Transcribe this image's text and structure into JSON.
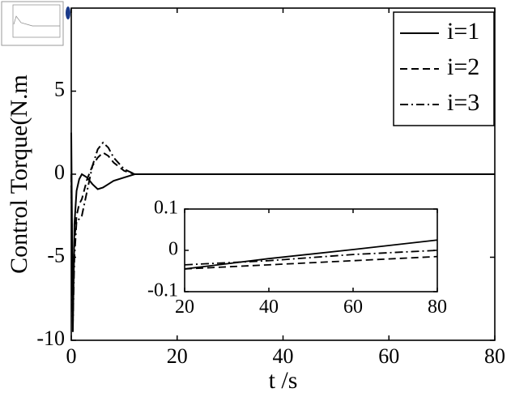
{
  "chart_data": [
    {
      "type": "line",
      "xlabel": "t /s",
      "ylabel": "Control Torque(N.m",
      "x": [
        0,
        0.3,
        0.6,
        1,
        1.5,
        2,
        3,
        4,
        5,
        6,
        7,
        8,
        10,
        12,
        15,
        80
      ],
      "series": [
        {
          "name": "i=1",
          "color": "#000000",
          "linestyle": "solid",
          "values": [
            2.5,
            -9.5,
            -3,
            -1,
            -0.3,
            0,
            -0.2,
            -0.6,
            -0.9,
            -0.8,
            -0.6,
            -0.4,
            -0.2,
            0,
            0,
            0
          ]
        },
        {
          "name": "i=2",
          "color": "#000000",
          "linestyle": "dashed",
          "values": [
            0,
            -8,
            -4,
            -2.5,
            -1.8,
            -1.5,
            -0.3,
            0.5,
            1,
            1.3,
            1.1,
            0.7,
            0.2,
            0,
            0,
            0
          ]
        },
        {
          "name": "i=3",
          "color": "#000000",
          "linestyle": "dashdot",
          "values": [
            0,
            -9,
            -5,
            -2.8,
            -2.7,
            -2.5,
            -1,
            0.5,
            1.5,
            1.9,
            1.6,
            1,
            0.3,
            0,
            0,
            0
          ]
        }
      ],
      "xlim": [
        0,
        80
      ],
      "xticks": [
        0,
        20,
        40,
        60,
        80
      ],
      "ylim": [
        -10,
        10
      ],
      "yticks": [
        -10,
        -5,
        0,
        5
      ],
      "grid": false,
      "legend": "upper right"
    },
    {
      "type": "line",
      "x": [
        20,
        40,
        60,
        80
      ],
      "series": [
        {
          "color": "#000000",
          "linestyle": "solid",
          "values": [
            -0.045,
            -0.02,
            0.002,
            0.025
          ]
        },
        {
          "color": "#000000",
          "linestyle": "dashed",
          "values": [
            -0.045,
            -0.035,
            -0.025,
            -0.015
          ]
        },
        {
          "color": "#000000",
          "linestyle": "dashdot",
          "values": [
            -0.035,
            -0.025,
            -0.01,
            0
          ]
        }
      ],
      "xlim": [
        20,
        80
      ],
      "xticks": [
        20,
        40,
        60,
        80
      ],
      "ylim": [
        -0.1,
        0.1
      ],
      "yticks": [
        -0.1,
        0,
        0.1
      ],
      "grid": false
    }
  ]
}
